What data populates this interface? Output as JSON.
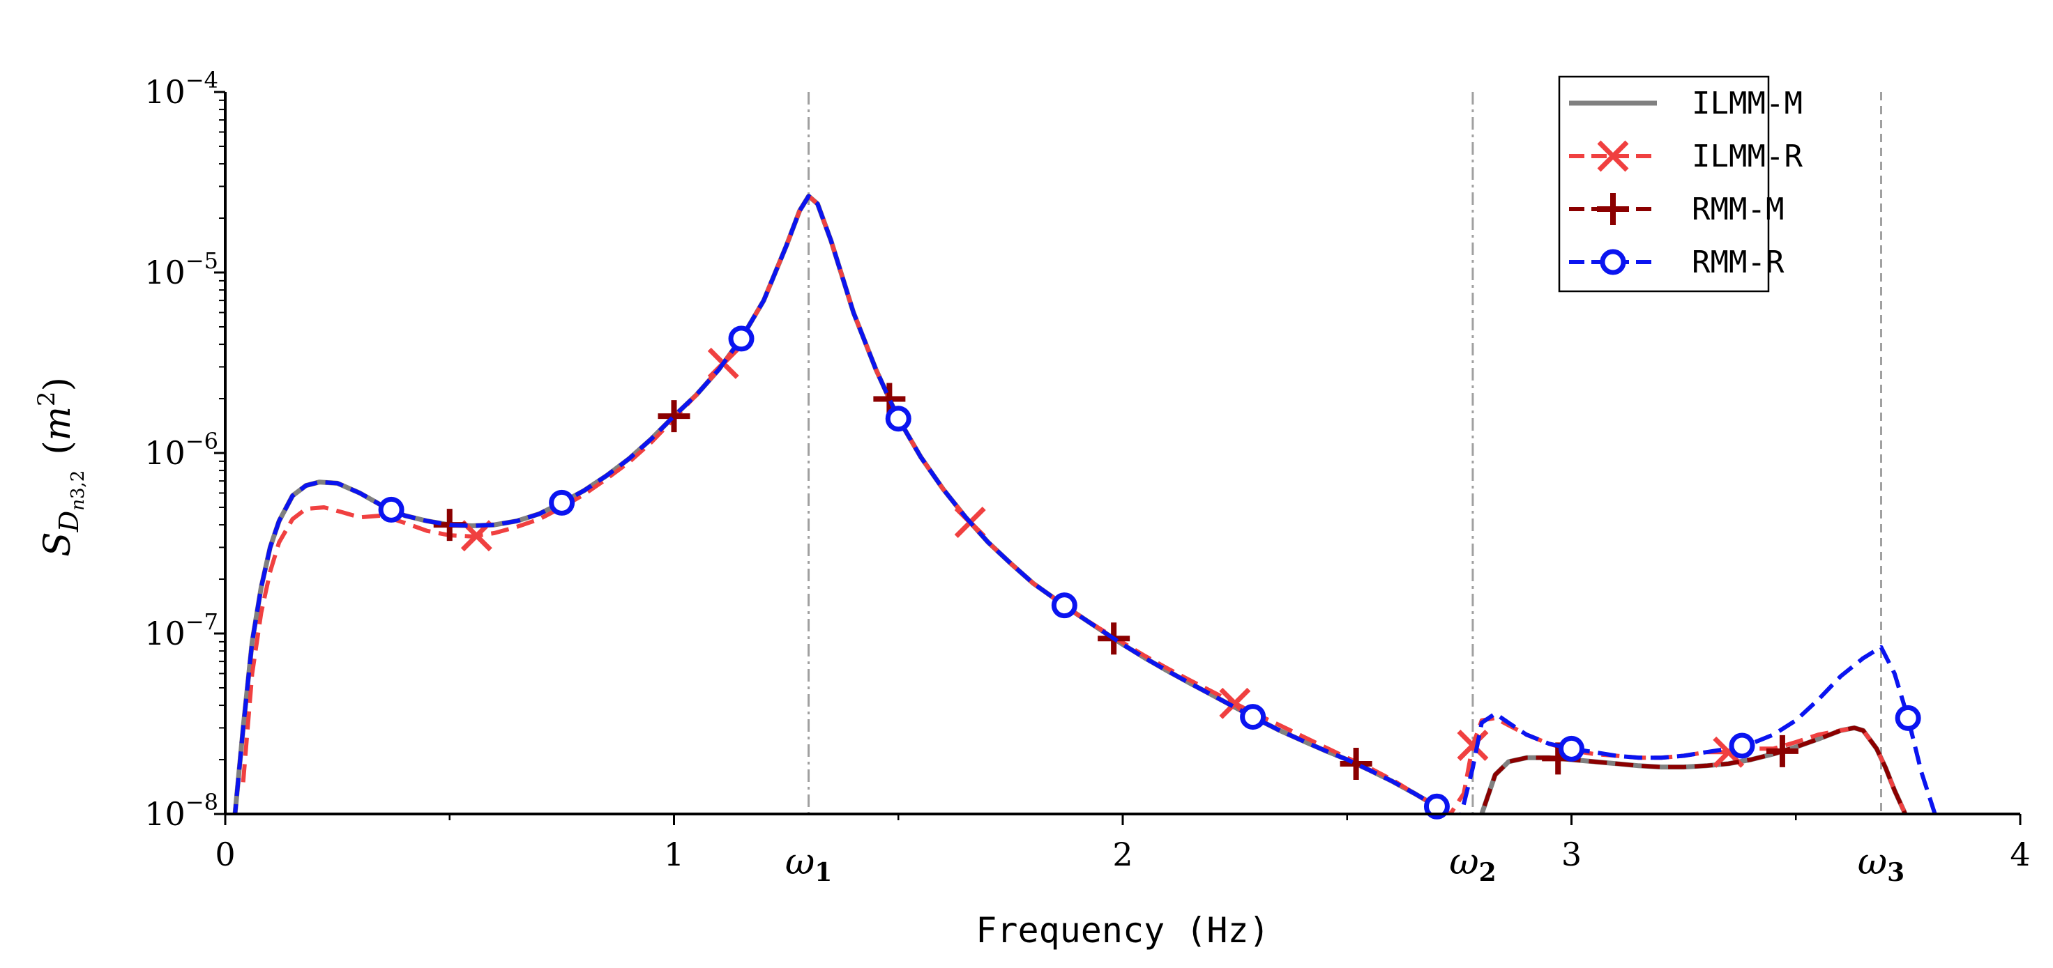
{
  "chart_data": {
    "type": "line",
    "title": "",
    "xlabel": "Frequency (Hz)",
    "ylabel": {
      "symbol": "S",
      "sub": "D",
      "subsub": "n",
      "subsubsub": "3,2",
      "unit_open": "(",
      "unit_m": "m",
      "unit_exp": "2",
      "unit_close": ")"
    },
    "xlim": [
      0,
      4
    ],
    "ylim": [
      1e-08,
      0.0001
    ],
    "yscale": "log",
    "xticks": [
      {
        "value": 0,
        "label": "0"
      },
      {
        "value": 1,
        "label": "1"
      },
      {
        "value": 2,
        "label": "2"
      },
      {
        "value": 3,
        "label": "3"
      },
      {
        "value": 4,
        "label": "4"
      }
    ],
    "yticks": [
      {
        "value": 1e-08,
        "base": "10",
        "exp": "−8"
      },
      {
        "value": 1e-07,
        "base": "10",
        "exp": "−7"
      },
      {
        "value": 1e-06,
        "base": "10",
        "exp": "−6"
      },
      {
        "value": 1e-05,
        "base": "10",
        "exp": "−5"
      },
      {
        "value": 0.0001,
        "base": "10",
        "exp": "−4"
      }
    ],
    "vlines": [
      {
        "x": 1.3,
        "label": "ω",
        "sub": "1",
        "style": "dashdot"
      },
      {
        "x": 2.78,
        "label": "ω",
        "sub": "2",
        "style": "dashdot"
      },
      {
        "x": 3.69,
        "label": "ω",
        "sub": "3",
        "style": "dashed"
      }
    ],
    "legend_position": "top-right",
    "series": [
      {
        "name": "ILMM-M",
        "color": "#808080",
        "line": "solid",
        "marker": "none",
        "x": [
          0.02,
          0.04,
          0.06,
          0.08,
          0.1,
          0.12,
          0.15,
          0.18,
          0.21,
          0.25,
          0.3,
          0.35,
          0.4,
          0.45,
          0.5,
          0.55,
          0.6,
          0.65,
          0.7,
          0.75,
          0.8,
          0.85,
          0.9,
          0.95,
          1.0,
          1.05,
          1.1,
          1.15,
          1.2,
          1.25,
          1.28,
          1.3,
          1.32,
          1.35,
          1.4,
          1.45,
          1.5,
          1.55,
          1.6,
          1.65,
          1.7,
          1.75,
          1.8,
          1.85,
          1.9,
          1.95,
          2.0,
          2.05,
          2.1,
          2.15,
          2.2,
          2.25,
          2.3,
          2.35,
          2.4,
          2.45,
          2.5,
          2.55,
          2.6,
          2.65,
          2.7,
          2.73,
          2.78,
          2.8,
          2.83,
          2.86,
          2.9,
          2.95,
          3.0,
          3.05,
          3.1,
          3.15,
          3.2,
          3.25,
          3.3,
          3.35,
          3.4,
          3.45,
          3.5,
          3.55,
          3.6,
          3.63,
          3.65,
          3.68,
          3.7,
          3.72,
          3.74,
          3.76
        ],
        "y": [
          9e-09,
          3e-08,
          9e-08,
          1.8e-07,
          3e-07,
          4.2e-07,
          5.8e-07,
          6.6e-07,
          6.9e-07,
          6.8e-07,
          6e-07,
          5.1e-07,
          4.5e-07,
          4.2e-07,
          4e-07,
          3.95e-07,
          4e-07,
          4.2e-07,
          4.6e-07,
          5.3e-07,
          6.2e-07,
          7.5e-07,
          9.3e-07,
          1.2e-06,
          1.6e-06,
          2.1e-06,
          2.9e-06,
          4.3e-06,
          7e-06,
          1.4e-05,
          2.2e-05,
          2.65e-05,
          2.4e-05,
          1.5e-05,
          6e-06,
          2.9e-06,
          1.55e-06,
          9.5e-07,
          6.3e-07,
          4.4e-07,
          3.2e-07,
          2.45e-07,
          1.9e-07,
          1.55e-07,
          1.27e-07,
          1.05e-07,
          8.7e-08,
          7.3e-08,
          6.2e-08,
          5.3e-08,
          4.55e-08,
          3.9e-08,
          3.35e-08,
          2.9e-08,
          2.55e-08,
          2.25e-08,
          2e-08,
          1.75e-08,
          1.52e-08,
          1.3e-08,
          1.1e-08,
          1e-08,
          8e-09,
          1e-08,
          1.65e-08,
          1.95e-08,
          2.05e-08,
          2.05e-08,
          2e-08,
          1.95e-08,
          1.9e-08,
          1.85e-08,
          1.82e-08,
          1.82e-08,
          1.85e-08,
          1.9e-08,
          2e-08,
          2.15e-08,
          2.35e-08,
          2.6e-08,
          2.9e-08,
          3e-08,
          2.9e-08,
          2.3e-08,
          1.8e-08,
          1.35e-08,
          1.05e-08,
          8e-09
        ]
      },
      {
        "name": "ILMM-R",
        "color": "#f04040",
        "line": "dashed",
        "marker": "x",
        "x": [
          0.04,
          0.06,
          0.08,
          0.1,
          0.12,
          0.15,
          0.18,
          0.22,
          0.26,
          0.3,
          0.35,
          0.4,
          0.45,
          0.5,
          0.55,
          0.6,
          0.65,
          0.7,
          0.75,
          0.8,
          0.85,
          0.9,
          0.95,
          1.0,
          1.05,
          1.1,
          1.15,
          1.2,
          1.25,
          1.28,
          1.3,
          1.32,
          1.35,
          1.4,
          1.45,
          1.5,
          1.55,
          1.6,
          1.65,
          1.7,
          1.75,
          1.8,
          1.85,
          1.9,
          1.95,
          2.0,
          2.05,
          2.1,
          2.15,
          2.2,
          2.25,
          2.3,
          2.35,
          2.4,
          2.45,
          2.5,
          2.55,
          2.6,
          2.65,
          2.7,
          2.73,
          2.76,
          2.78,
          2.8,
          2.83,
          2.86,
          2.9,
          2.95,
          3.0,
          3.05,
          3.1,
          3.15,
          3.2,
          3.25,
          3.3,
          3.35,
          3.4,
          3.45,
          3.5,
          3.55,
          3.6,
          3.63,
          3.65,
          3.68,
          3.7,
          3.72,
          3.74,
          3.76
        ],
        "y": [
          1.5e-08,
          6e-08,
          1.3e-07,
          2.2e-07,
          3.2e-07,
          4.3e-07,
          4.9e-07,
          5e-07,
          4.7e-07,
          4.4e-07,
          4.5e-07,
          4.1e-07,
          3.7e-07,
          3.5e-07,
          3.45e-07,
          3.6e-07,
          3.9e-07,
          4.3e-07,
          5e-07,
          5.9e-07,
          7.2e-07,
          8.9e-07,
          1.15e-06,
          1.55e-06,
          2.1e-06,
          2.9e-06,
          4.3e-06,
          7e-06,
          1.4e-05,
          2.2e-05,
          2.65e-05,
          2.4e-05,
          1.5e-05,
          6e-06,
          2.9e-06,
          1.55e-06,
          9.5e-07,
          6.3e-07,
          4.4e-07,
          3.2e-07,
          2.45e-07,
          1.9e-07,
          1.55e-07,
          1.27e-07,
          1.06e-07,
          8.9e-08,
          7.5e-08,
          6.4e-08,
          5.5e-08,
          4.75e-08,
          4.1e-08,
          3.55e-08,
          3.1e-08,
          2.7e-08,
          2.35e-08,
          2.05e-08,
          1.8e-08,
          1.55e-08,
          1.3e-08,
          1.1e-08,
          1e-08,
          1.3e-08,
          2.4e-08,
          3.3e-08,
          3.4e-08,
          3.1e-08,
          2.75e-08,
          2.45e-08,
          2.25e-08,
          2.15e-08,
          2.1e-08,
          2.05e-08,
          2.05e-08,
          2.1e-08,
          2.2e-08,
          2.2e-08,
          2.3e-08,
          2.3e-08,
          2.5e-08,
          2.75e-08,
          2.9e-08,
          3e-08,
          2.9e-08,
          2.3e-08,
          1.8e-08,
          1.35e-08,
          1.05e-08,
          8e-09
        ],
        "marker_x": [
          0.56,
          1.11,
          1.66,
          2.25,
          2.78,
          3.35
        ]
      },
      {
        "name": "RMM-M",
        "color": "#8b0000",
        "line": "dashed",
        "marker": "+",
        "x": [
          0.02,
          0.04,
          0.06,
          0.08,
          0.1,
          0.12,
          0.15,
          0.18,
          0.21,
          0.25,
          0.3,
          0.35,
          0.4,
          0.45,
          0.5,
          0.55,
          0.6,
          0.65,
          0.7,
          0.75,
          0.8,
          0.85,
          0.9,
          0.95,
          1.0,
          1.05,
          1.1,
          1.15,
          1.2,
          1.25,
          1.28,
          1.3,
          1.32,
          1.35,
          1.4,
          1.45,
          1.5,
          1.55,
          1.6,
          1.65,
          1.7,
          1.75,
          1.8,
          1.85,
          1.9,
          1.95,
          2.0,
          2.05,
          2.1,
          2.15,
          2.2,
          2.25,
          2.3,
          2.35,
          2.4,
          2.45,
          2.5,
          2.55,
          2.6,
          2.65,
          2.7,
          2.73,
          2.78,
          2.8,
          2.83,
          2.86,
          2.9,
          2.95,
          3.0,
          3.05,
          3.1,
          3.15,
          3.2,
          3.25,
          3.3,
          3.35,
          3.4,
          3.45,
          3.5,
          3.55,
          3.6,
          3.63,
          3.65,
          3.68,
          3.7,
          3.72,
          3.74,
          3.76
        ],
        "y": [
          9e-09,
          3e-08,
          9e-08,
          1.8e-07,
          3e-07,
          4.2e-07,
          5.8e-07,
          6.6e-07,
          6.9e-07,
          6.8e-07,
          6e-07,
          5.1e-07,
          4.5e-07,
          4.2e-07,
          4e-07,
          3.95e-07,
          4e-07,
          4.2e-07,
          4.6e-07,
          5.3e-07,
          6.2e-07,
          7.5e-07,
          9.3e-07,
          1.2e-06,
          1.6e-06,
          2.1e-06,
          2.9e-06,
          4.3e-06,
          7e-06,
          1.4e-05,
          2.2e-05,
          2.65e-05,
          2.4e-05,
          1.5e-05,
          6e-06,
          2.9e-06,
          1.55e-06,
          9.5e-07,
          6.3e-07,
          4.4e-07,
          3.2e-07,
          2.45e-07,
          1.9e-07,
          1.55e-07,
          1.27e-07,
          1.05e-07,
          8.7e-08,
          7.3e-08,
          6.2e-08,
          5.3e-08,
          4.55e-08,
          3.9e-08,
          3.35e-08,
          2.9e-08,
          2.55e-08,
          2.25e-08,
          2e-08,
          1.75e-08,
          1.52e-08,
          1.3e-08,
          1.1e-08,
          1e-08,
          8e-09,
          1e-08,
          1.65e-08,
          1.95e-08,
          2.05e-08,
          2.05e-08,
          2e-08,
          1.95e-08,
          1.9e-08,
          1.85e-08,
          1.82e-08,
          1.82e-08,
          1.85e-08,
          1.9e-08,
          2e-08,
          2.15e-08,
          2.35e-08,
          2.6e-08,
          2.9e-08,
          3e-08,
          2.9e-08,
          2.3e-08,
          1.8e-08,
          1.35e-08,
          1.05e-08,
          8e-09
        ],
        "marker_x": [
          0.5,
          1.0,
          1.48,
          1.98,
          2.52,
          2.97,
          3.47
        ]
      },
      {
        "name": "RMM-R",
        "color": "#0a14f0",
        "line": "dashed",
        "marker": "o",
        "x": [
          0.02,
          0.04,
          0.06,
          0.08,
          0.1,
          0.12,
          0.15,
          0.18,
          0.21,
          0.25,
          0.3,
          0.35,
          0.4,
          0.45,
          0.5,
          0.55,
          0.6,
          0.65,
          0.7,
          0.75,
          0.8,
          0.85,
          0.9,
          0.95,
          1.0,
          1.05,
          1.1,
          1.15,
          1.2,
          1.25,
          1.28,
          1.3,
          1.32,
          1.35,
          1.4,
          1.45,
          1.5,
          1.55,
          1.6,
          1.65,
          1.7,
          1.75,
          1.8,
          1.85,
          1.9,
          1.95,
          2.0,
          2.05,
          2.1,
          2.15,
          2.2,
          2.25,
          2.3,
          2.35,
          2.4,
          2.45,
          2.5,
          2.55,
          2.6,
          2.65,
          2.7,
          2.75,
          2.78,
          2.8,
          2.83,
          2.86,
          2.9,
          2.95,
          3.0,
          3.05,
          3.1,
          3.15,
          3.2,
          3.25,
          3.3,
          3.35,
          3.4,
          3.45,
          3.5,
          3.55,
          3.6,
          3.65,
          3.69,
          3.72,
          3.75,
          3.78,
          3.81
        ],
        "y": [
          9e-09,
          3e-08,
          9e-08,
          1.8e-07,
          3e-07,
          4.2e-07,
          5.8e-07,
          6.6e-07,
          6.9e-07,
          6.8e-07,
          6e-07,
          5.1e-07,
          4.5e-07,
          4.2e-07,
          4e-07,
          3.95e-07,
          4e-07,
          4.2e-07,
          4.6e-07,
          5.3e-07,
          6.2e-07,
          7.5e-07,
          9.3e-07,
          1.2e-06,
          1.6e-06,
          2.1e-06,
          2.9e-06,
          4.3e-06,
          7e-06,
          1.4e-05,
          2.2e-05,
          2.65e-05,
          2.4e-05,
          1.5e-05,
          6e-06,
          2.9e-06,
          1.55e-06,
          9.5e-07,
          6.3e-07,
          4.4e-07,
          3.2e-07,
          2.45e-07,
          1.9e-07,
          1.55e-07,
          1.27e-07,
          1.05e-07,
          8.7e-08,
          7.3e-08,
          6.2e-08,
          5.3e-08,
          4.55e-08,
          3.9e-08,
          3.35e-08,
          2.9e-08,
          2.55e-08,
          2.25e-08,
          2e-08,
          1.75e-08,
          1.52e-08,
          1.3e-08,
          1.1e-08,
          9e-09,
          1.8e-08,
          3.2e-08,
          3.6e-08,
          3.2e-08,
          2.75e-08,
          2.45e-08,
          2.3e-08,
          2.2e-08,
          2.1e-08,
          2.05e-08,
          2.05e-08,
          2.1e-08,
          2.2e-08,
          2.3e-08,
          2.45e-08,
          2.75e-08,
          3.3e-08,
          4.3e-08,
          5.8e-08,
          7.3e-08,
          8.4e-08,
          6e-08,
          3.4e-08,
          1.7e-08,
          1e-08
        ],
        "marker_x": [
          0.37,
          0.75,
          1.15,
          1.5,
          1.87,
          2.29,
          2.7,
          3.0,
          3.38,
          3.75
        ]
      }
    ]
  }
}
